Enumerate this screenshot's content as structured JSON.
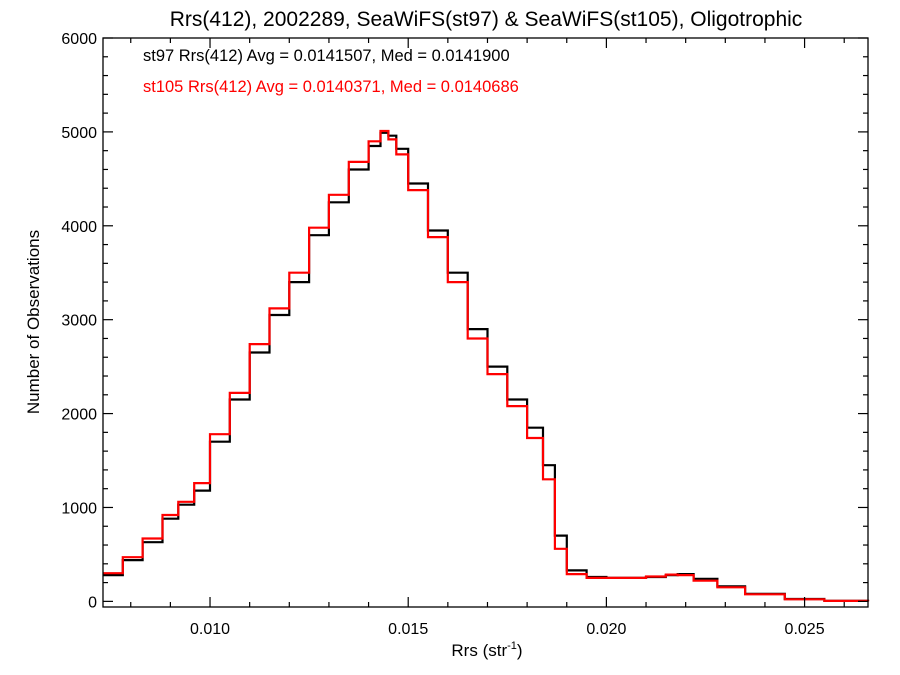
{
  "chart_data": {
    "type": "line",
    "title": "Rrs(412), 2002289, SeaWiFS(st97) & SeaWiFS(st105), Oligotrophic",
    "xlabel": "Rrs (str",
    "xlabel_sup": "-1",
    "xlabel_suffix": ")",
    "ylabel": "Number of Observations",
    "xlim": [
      0.0073,
      0.0266
    ],
    "ylim": [
      -60,
      6000
    ],
    "x_ticks": [
      0.01,
      0.015,
      0.02,
      0.025
    ],
    "x_tick_labels": [
      "0.010",
      "0.015",
      "0.020",
      "0.025"
    ],
    "y_ticks": [
      0,
      1000,
      2000,
      3000,
      4000,
      5000,
      6000
    ],
    "y_tick_labels": [
      "0",
      "1000",
      "2000",
      "3000",
      "4000",
      "5000",
      "6000"
    ],
    "grid": false,
    "legend": "top-left",
    "step_style": "histogram",
    "annotations": [
      {
        "text": "st97 Rrs(412) Avg = 0.0141507, Med = 0.0141900",
        "color": "#000000"
      },
      {
        "text": "st105 Rrs(412) Avg = 0.0140371, Med = 0.0140686",
        "color": "#ff0000"
      }
    ],
    "series": [
      {
        "color": "#000000",
        "x": [
          0.0073,
          0.0078,
          0.0083,
          0.0088,
          0.0092,
          0.0096,
          0.01,
          0.0105,
          0.011,
          0.0115,
          0.012,
          0.0125,
          0.013,
          0.0135,
          0.014,
          0.0143,
          0.0145,
          0.0147,
          0.015,
          0.0155,
          0.016,
          0.0165,
          0.017,
          0.0175,
          0.018,
          0.0184,
          0.0187,
          0.019,
          0.0195,
          0.02,
          0.0205,
          0.021,
          0.0215,
          0.0218,
          0.0222,
          0.0228,
          0.0235,
          0.0245,
          0.0255,
          0.0266
        ],
        "y": [
          280,
          440,
          630,
          880,
          1030,
          1180,
          1700,
          2150,
          2650,
          3050,
          3400,
          3900,
          4250,
          4600,
          4850,
          4990,
          4960,
          4820,
          4450,
          3950,
          3500,
          2900,
          2500,
          2150,
          1850,
          1450,
          700,
          330,
          260,
          250,
          250,
          260,
          280,
          290,
          240,
          160,
          80,
          25,
          5,
          0
        ]
      },
      {
        "color": "#ff0000",
        "x": [
          0.0073,
          0.0078,
          0.0083,
          0.0088,
          0.0092,
          0.0096,
          0.01,
          0.0105,
          0.011,
          0.0115,
          0.012,
          0.0125,
          0.013,
          0.0135,
          0.014,
          0.0143,
          0.0145,
          0.0147,
          0.015,
          0.0155,
          0.016,
          0.0165,
          0.017,
          0.0175,
          0.018,
          0.0184,
          0.0187,
          0.019,
          0.0195,
          0.02,
          0.0205,
          0.021,
          0.0215,
          0.0218,
          0.0222,
          0.0228,
          0.0235,
          0.0245,
          0.0255,
          0.0266
        ],
        "y": [
          300,
          470,
          670,
          920,
          1060,
          1260,
          1780,
          2220,
          2740,
          3120,
          3500,
          3980,
          4330,
          4680,
          4900,
          5010,
          4920,
          4760,
          4380,
          3880,
          3400,
          2800,
          2420,
          2080,
          1740,
          1300,
          560,
          290,
          250,
          250,
          250,
          265,
          285,
          280,
          220,
          150,
          75,
          22,
          5,
          0
        ]
      }
    ]
  }
}
